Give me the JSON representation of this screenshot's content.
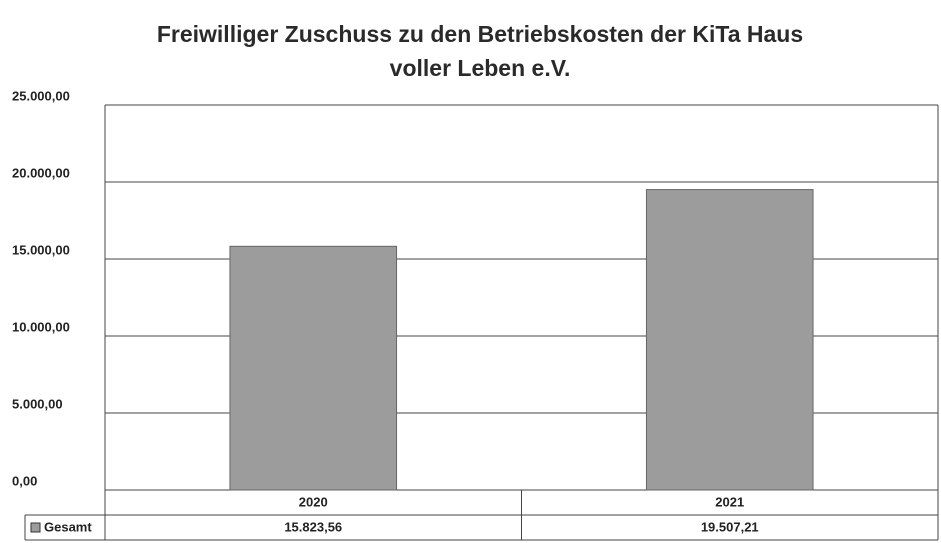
{
  "chart_data": {
    "type": "bar",
    "title": [
      "Freiwilliger Zuschuss zu den Betriebskosten der KiTa Haus",
      "voller Leben e.V."
    ],
    "categories": [
      "2020",
      "2021"
    ],
    "series": [
      {
        "name": "Gesamt",
        "color": "#9c9c9c",
        "values": [
          15823.56,
          19507.21
        ],
        "value_labels": [
          "15.823,56",
          "19.507,21"
        ]
      }
    ],
    "ylim": [
      0,
      25000
    ],
    "yticks": [
      {
        "value": 0,
        "label": "0,00"
      },
      {
        "value": 5000,
        "label": "5.000,00"
      },
      {
        "value": 10000,
        "label": "10.000,00"
      },
      {
        "value": 15000,
        "label": "15.000,00"
      },
      {
        "value": 20000,
        "label": "20.000,00"
      },
      {
        "value": 25000,
        "label": "25.000,00"
      }
    ],
    "grid": true,
    "legend": "bottom-left"
  }
}
